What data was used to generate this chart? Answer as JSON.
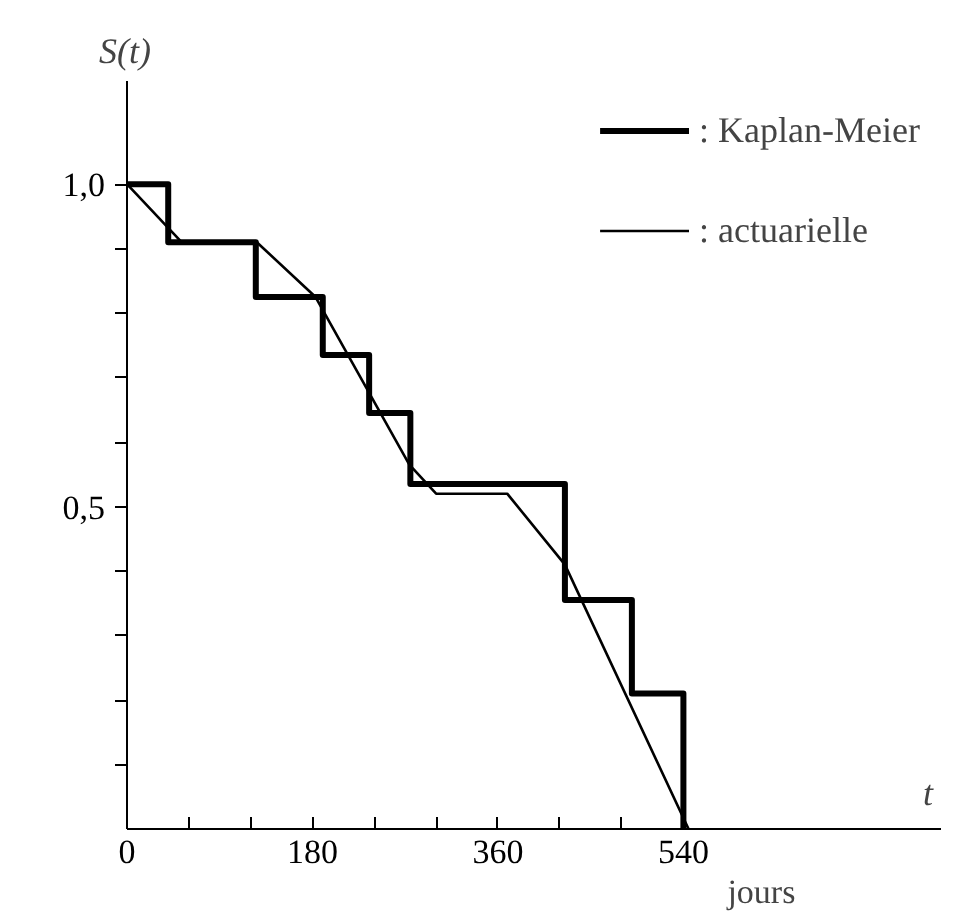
{
  "chart_data": {
    "type": "line",
    "xlabel": "t",
    "ylabel": "S(t)",
    "annotations": [
      "jours"
    ],
    "xlim": [
      0,
      790
    ],
    "ylim": [
      0,
      1.16
    ],
    "xticks": [
      0,
      {
        "value": 60,
        "label": null
      },
      {
        "value": 120,
        "label": null
      },
      180,
      {
        "value": 240,
        "label": null
      },
      {
        "value": 300,
        "label": null
      },
      360,
      {
        "value": 420,
        "label": null
      },
      {
        "value": 480,
        "label": null
      },
      540
    ],
    "yticks": [
      {
        "value": 0.1,
        "label": null
      },
      {
        "value": 0.2,
        "label": null
      },
      {
        "value": 0.3,
        "label": null
      },
      {
        "value": 0.4,
        "label": null
      },
      {
        "value": 0.5,
        "label": "0,5"
      },
      {
        "value": 0.6,
        "label": null
      },
      {
        "value": 0.7,
        "label": null
      },
      {
        "value": 0.8,
        "label": null
      },
      {
        "value": 0.9,
        "label": null
      },
      {
        "value": 1.0,
        "label": "1,0"
      }
    ],
    "grid": false,
    "legend": "top right",
    "marker": "none",
    "series": [
      {
        "name": ": Kaplan-Meier",
        "type": "step",
        "color": "#000000",
        "x": [
          0,
          40,
          125,
          190,
          235,
          275,
          425,
          490,
          540
        ],
        "values": [
          1.0,
          0.91,
          0.825,
          0.735,
          0.645,
          0.535,
          0.355,
          0.21,
          0.0
        ]
      },
      {
        "name": ": actuarielle",
        "color": "#000000",
        "x": [
          0,
          53,
          126,
          183,
          274,
          300,
          369,
          425,
          545
        ],
        "values": [
          1.0,
          0.91,
          0.91,
          0.825,
          0.565,
          0.52,
          0.52,
          0.41,
          0.0
        ]
      }
    ]
  }
}
